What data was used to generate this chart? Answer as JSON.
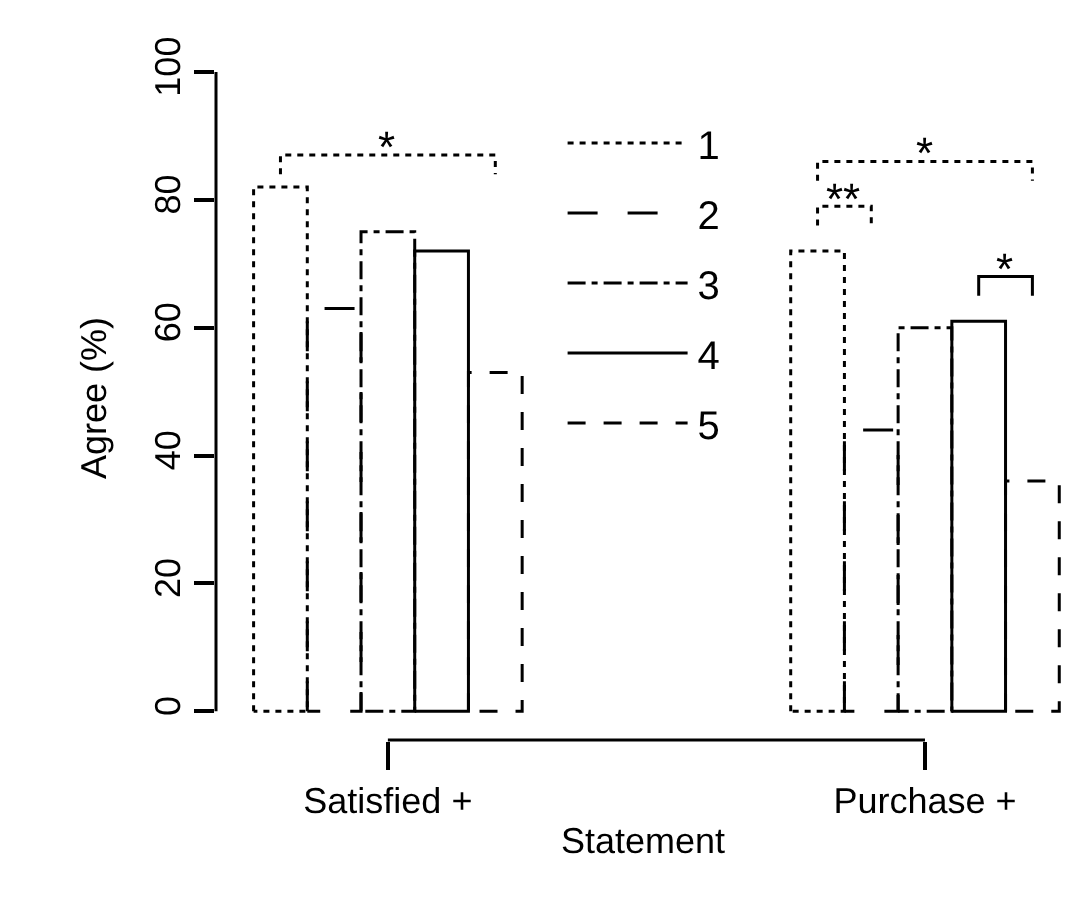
{
  "chart_data": {
    "type": "bar",
    "xlabel": "Statement",
    "ylabel": "Agree (%)",
    "categories": [
      "Satisfied +",
      "Purchase +"
    ],
    "series": [
      {
        "name": "1",
        "color": "#000000",
        "line_style": "dotted",
        "values": [
          82,
          72
        ]
      },
      {
        "name": "2",
        "color": "#000000",
        "line_style": "longdash",
        "values": [
          63,
          44
        ]
      },
      {
        "name": "3",
        "color": "#000000",
        "line_style": "dashdot",
        "values": [
          75,
          60
        ]
      },
      {
        "name": "4",
        "color": "#000000",
        "line_style": "solid",
        "values": [
          72,
          61
        ]
      },
      {
        "name": "5",
        "color": "#000000",
        "line_style": "dashed",
        "values": [
          53,
          36
        ]
      }
    ],
    "ylim": [
      0,
      100
    ],
    "yticks": [
      0,
      20,
      40,
      60,
      80,
      100
    ],
    "legend": "top",
    "annotations": [
      "*",
      "**",
      "*",
      "*"
    ]
  }
}
